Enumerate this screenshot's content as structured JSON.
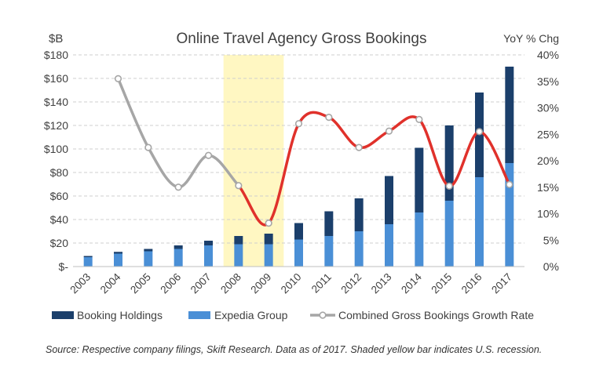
{
  "chart_data": {
    "type": "bar",
    "title": "Online Travel Agency Gross Bookings",
    "left_axis_label": "$B",
    "right_axis_label": "YoY % Chg",
    "categories": [
      "2003",
      "2004",
      "2005",
      "2006",
      "2007",
      "2008",
      "2009",
      "2010",
      "2011",
      "2012",
      "2013",
      "2014",
      "2015",
      "2016",
      "2017"
    ],
    "ylim": [
      0,
      180
    ],
    "y_ticks": [
      0,
      20,
      40,
      60,
      80,
      100,
      120,
      140,
      160,
      180
    ],
    "y_tick_labels": [
      "$-",
      "$20",
      "$40",
      "$60",
      "$80",
      "$100",
      "$120",
      "$140",
      "$160",
      "$180"
    ],
    "y2lim": [
      0,
      40
    ],
    "y2_ticks": [
      0,
      5,
      10,
      15,
      20,
      25,
      30,
      35,
      40
    ],
    "y2_tick_labels": [
      "0%",
      "5%",
      "10%",
      "15%",
      "20%",
      "25%",
      "30%",
      "35%",
      "40%"
    ],
    "stacked": true,
    "grid": "horizontal dashed",
    "legend_position": "bottom",
    "series": [
      {
        "name": "Expedia Group",
        "kind": "bar",
        "color": "#4a8fd6",
        "values": [
          8,
          11,
          13,
          15,
          18,
          19,
          19,
          23,
          26,
          30,
          36,
          46,
          56,
          76,
          88
        ]
      },
      {
        "name": "Booking Holdings",
        "kind": "bar",
        "color": "#1b3f6b",
        "values": [
          1,
          1.5,
          2,
          3,
          4,
          7,
          9,
          14,
          21,
          28,
          41,
          55,
          64,
          72,
          82
        ]
      },
      {
        "name": "Combined Gross Bookings Growth Rate",
        "kind": "line",
        "axis": "right",
        "values": [
          null,
          35.5,
          22.5,
          15,
          21,
          15.3,
          8.2,
          27,
          28.2,
          22.5,
          25.6,
          27.8,
          15.2,
          25.5,
          15.5
        ]
      }
    ],
    "line_colors": {
      "normal": "#a6a6a6",
      "highlight": "#e0312b"
    },
    "recession_shading": {
      "from": "2008",
      "to": "2009",
      "color": "#fff7c2"
    },
    "source_note": "Source: Respective company filings, Skift Research. Data as of 2017. Shaded yellow bar indicates U.S. recession."
  }
}
